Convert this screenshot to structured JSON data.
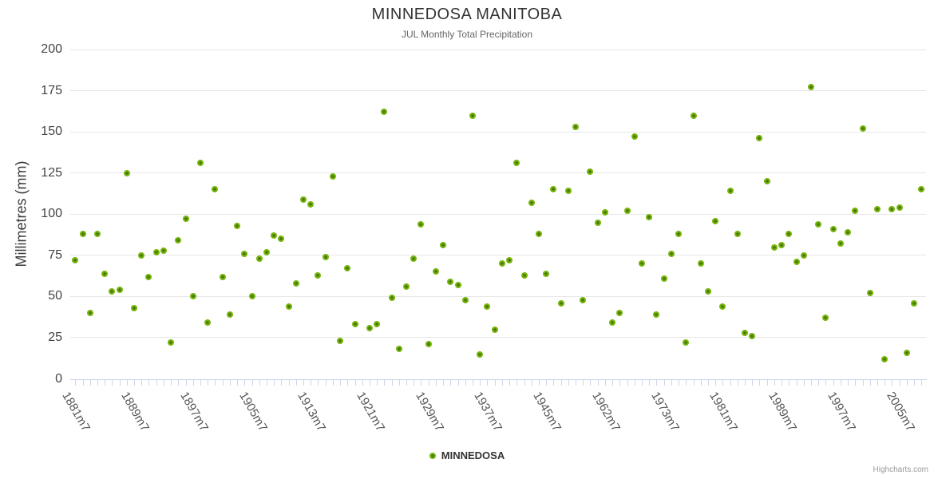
{
  "title": "MINNEDOSA MANITOBA",
  "subtitle": "JUL Monthly Total Precipitation",
  "legend": {
    "series_label": "MINNEDOSA"
  },
  "credit": "Highcharts.com",
  "colors": {
    "marker_outer": "#76b40a",
    "marker_core": "#467608",
    "grid_line": "#e6e6e6",
    "axis_line": "#ccd6eb"
  },
  "chart_data": {
    "type": "scatter",
    "title": "MINNEDOSA MANITOBA",
    "subtitle": "JUL Monthly Total Precipitation",
    "xlabel": "",
    "ylabel": "Millimetres (mm)",
    "ylim": [
      0,
      200
    ],
    "yticks": [
      0,
      25,
      50,
      75,
      100,
      125,
      150,
      175,
      200
    ],
    "grid": true,
    "legend_position": "bottom",
    "x_label_every": 8,
    "x_label_rotation_deg": 60,
    "visible_x_tick_labels": [
      "1881m7",
      "1889m7",
      "1897m7",
      "1905m7",
      "1913m7",
      "1921m7",
      "1929m7",
      "1937m7",
      "1945m7",
      "1962m7",
      "1973m7",
      "1981m7",
      "1989m7",
      "1997m7",
      "2005m7"
    ],
    "series_name": "MINNEDOSA",
    "categories": [
      "1881m7",
      "1882m7",
      "1883m7",
      "1884m7",
      "1885m7",
      "1886m7",
      "1887m7",
      "1888m7",
      "1889m7",
      "1890m7",
      "1891m7",
      "1892m7",
      "1893m7",
      "1894m7",
      "1895m7",
      "1896m7",
      "1897m7",
      "1898m7",
      "1899m7",
      "1900m7",
      "1901m7",
      "1902m7",
      "1903m7",
      "1904m7",
      "1905m7",
      "1906m7",
      "1907m7",
      "1908m7",
      "1909m7",
      "1910m7",
      "1911m7",
      "1912m7",
      "1913m7",
      "1914m7",
      "1915m7",
      "1916m7",
      "1917m7",
      "1918m7",
      "1919m7",
      "1920m7",
      "1921m7",
      "1922m7",
      "1923m7",
      "1924m7",
      "1925m7",
      "1926m7",
      "1927m7",
      "1928m7",
      "1929m7",
      "1930m7",
      "1931m7",
      "1932m7",
      "1933m7",
      "1934m7",
      "1935m7",
      "1936m7",
      "1937m7",
      "1938m7",
      "1939m7",
      "1940m7",
      "1941m7",
      "1942m7",
      "1943m7",
      "1944m7",
      "1945m7",
      "1947m7",
      "1950m7",
      "1952m7",
      "1954m7",
      "1956m7",
      "1958m7",
      "1960m7",
      "1962m7",
      "1963m7",
      "1964m7",
      "1966m7",
      "1967m7",
      "1969m7",
      "1970m7",
      "1971m7",
      "1973m7",
      "1974m7",
      "1975m7",
      "1976m7",
      "1977m7",
      "1978m7",
      "1979m7",
      "1980m7",
      "1981m7",
      "1982m7",
      "1983m7",
      "1984m7",
      "1985m7",
      "1986m7",
      "1987m7",
      "1988m7",
      "1989m7",
      "1990m7",
      "1991m7",
      "1992m7",
      "1993m7",
      "1994m7",
      "1995m7",
      "1996m7",
      "1997m7",
      "1998m7",
      "1999m7",
      "2000m7",
      "2001m7",
      "2002m7",
      "2003m7",
      "2004m7",
      "2005m7",
      "2006m7",
      "2007m7",
      "2008m7"
    ],
    "values": [
      72,
      88,
      40,
      88,
      64,
      53,
      54,
      125,
      43,
      75,
      62,
      77,
      78,
      22,
      84,
      97,
      50,
      131,
      34,
      115,
      62,
      39,
      93,
      76,
      50,
      73,
      77,
      87,
      85,
      44,
      58,
      109,
      106,
      63,
      74,
      123,
      23,
      67,
      33,
      null,
      31,
      33,
      162,
      49,
      18,
      56,
      73,
      94,
      21,
      65,
      81,
      59,
      57,
      48,
      160,
      15,
      44,
      30,
      70,
      72,
      131,
      63,
      107,
      88,
      64,
      115,
      46,
      114,
      153,
      48,
      126,
      95,
      101,
      34,
      40,
      102,
      147,
      70,
      98,
      39,
      61,
      76,
      88,
      22,
      160,
      70,
      53,
      96,
      44,
      114,
      88,
      28,
      26,
      146,
      120,
      80,
      81,
      88,
      71,
      75,
      177,
      94,
      37,
      91,
      82,
      89,
      102,
      152,
      52,
      103,
      12,
      103,
      104,
      16,
      46,
      115
    ]
  }
}
